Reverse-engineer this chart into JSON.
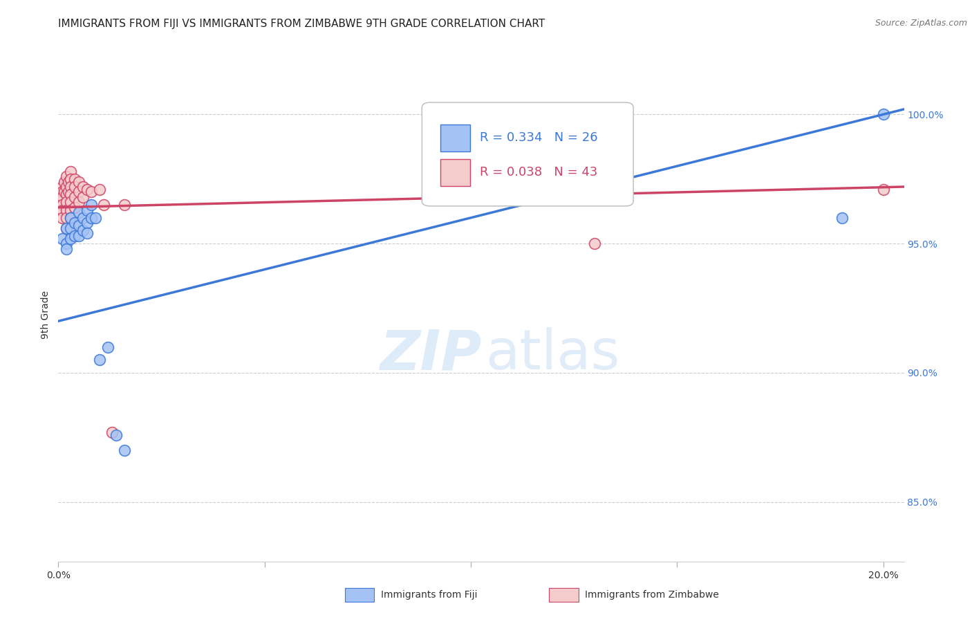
{
  "title": "IMMIGRANTS FROM FIJI VS IMMIGRANTS FROM ZIMBABWE 9TH GRADE CORRELATION CHART",
  "source": "Source: ZipAtlas.com",
  "ylabel": "9th Grade",
  "x_ticks": [
    0.0,
    0.05,
    0.1,
    0.15,
    0.2
  ],
  "x_tick_labels": [
    "0.0%",
    "",
    "",
    "",
    "20.0%"
  ],
  "y_ticks": [
    0.85,
    0.9,
    0.95,
    1.0
  ],
  "y_tick_labels": [
    "85.0%",
    "90.0%",
    "95.0%",
    "100.0%"
  ],
  "x_min": 0.0,
  "x_max": 0.205,
  "y_min": 0.827,
  "y_max": 1.018,
  "legend_blue_r": "R = 0.334",
  "legend_blue_n": "N = 26",
  "legend_pink_r": "R = 0.038",
  "legend_pink_n": "N = 43",
  "blue_color": "#a4c2f4",
  "pink_color": "#f4cccc",
  "trendline_blue": "#3c78d8",
  "trendline_pink": "#cc4466",
  "fiji_x": [
    0.001,
    0.002,
    0.002,
    0.002,
    0.003,
    0.003,
    0.003,
    0.004,
    0.004,
    0.005,
    0.005,
    0.005,
    0.006,
    0.006,
    0.007,
    0.007,
    0.007,
    0.008,
    0.008,
    0.009,
    0.01,
    0.012,
    0.014,
    0.016,
    0.19,
    0.2
  ],
  "fiji_y": [
    0.952,
    0.956,
    0.95,
    0.948,
    0.96,
    0.956,
    0.952,
    0.958,
    0.953,
    0.962,
    0.957,
    0.953,
    0.96,
    0.955,
    0.963,
    0.958,
    0.954,
    0.965,
    0.96,
    0.96,
    0.905,
    0.91,
    0.876,
    0.87,
    0.96,
    1.0
  ],
  "zimbabwe_x": [
    0.0005,
    0.0005,
    0.001,
    0.001,
    0.001,
    0.001,
    0.001,
    0.001,
    0.0015,
    0.0015,
    0.002,
    0.002,
    0.002,
    0.002,
    0.002,
    0.002,
    0.002,
    0.0025,
    0.0025,
    0.003,
    0.003,
    0.003,
    0.003,
    0.003,
    0.003,
    0.003,
    0.004,
    0.004,
    0.004,
    0.004,
    0.005,
    0.005,
    0.005,
    0.006,
    0.006,
    0.007,
    0.008,
    0.01,
    0.011,
    0.013,
    0.016,
    0.13,
    0.2
  ],
  "zimbabwe_y": [
    0.968,
    0.966,
    0.972,
    0.97,
    0.968,
    0.965,
    0.963,
    0.96,
    0.974,
    0.97,
    0.976,
    0.972,
    0.969,
    0.966,
    0.963,
    0.96,
    0.956,
    0.974,
    0.97,
    0.978,
    0.975,
    0.972,
    0.969,
    0.966,
    0.963,
    0.96,
    0.975,
    0.972,
    0.968,
    0.964,
    0.974,
    0.97,
    0.966,
    0.972,
    0.968,
    0.971,
    0.97,
    0.971,
    0.965,
    0.877,
    0.965,
    0.95,
    0.971
  ],
  "blue_trendline_x": [
    0.0,
    0.205
  ],
  "blue_trendline_y": [
    0.92,
    1.002
  ],
  "pink_trendline_x": [
    0.0,
    0.205
  ],
  "pink_trendline_y": [
    0.964,
    0.972
  ],
  "grid_color": "#cccccc",
  "background_color": "#ffffff",
  "title_fontsize": 11,
  "axis_label_fontsize": 10,
  "tick_fontsize": 10,
  "legend_fontsize": 13
}
